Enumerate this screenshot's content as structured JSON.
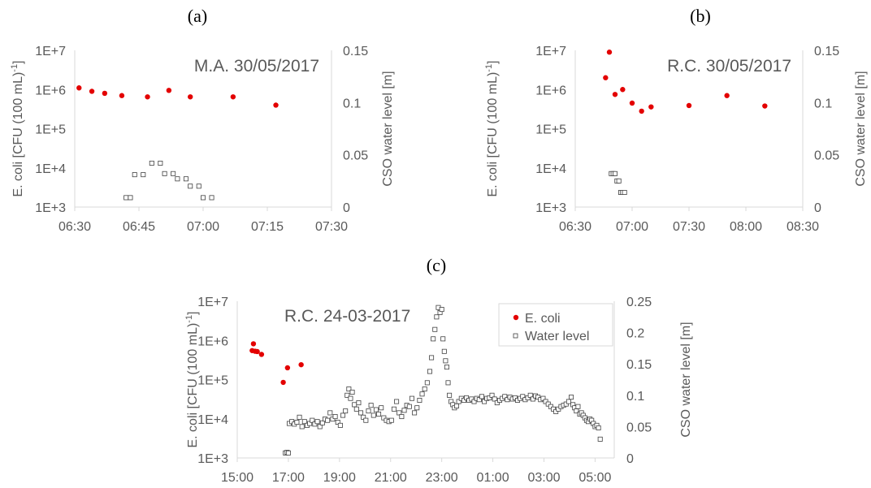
{
  "chart_data": [
    {
      "panel_label": "(a)",
      "type": "scatter",
      "annotation": "M.A. 30/05/2017",
      "ylabel": "E. coli [CFU (100 mL)",
      "ylabel_sup": "-1",
      "ylabel_close": "]",
      "y2label": "CSO water level [m]",
      "x_ticks": [
        "06:30",
        "06:45",
        "07:00",
        "07:15",
        "07:30"
      ],
      "xlim": [
        "06:30",
        "07:30"
      ],
      "y_ticks": [
        "1E+3",
        "1E+4",
        "1E+5",
        "1E+6",
        "1E+7"
      ],
      "ylim": [
        1000,
        10000000
      ],
      "y_scale": "log",
      "y2_ticks": [
        "0",
        "0.05",
        "0.1",
        "0.15"
      ],
      "y2lim": [
        0,
        0.15
      ],
      "series": [
        {
          "axis": "left",
          "marker": "filled-circle",
          "color": "#e30000",
          "points": [
            [
              "06:31",
              1100000
            ],
            [
              "06:34",
              900000
            ],
            [
              "06:37",
              800000
            ],
            [
              "06:41",
              700000
            ],
            [
              "06:47",
              650000
            ],
            [
              "06:52",
              950000
            ],
            [
              "06:57",
              650000
            ],
            [
              "07:07",
              650000
            ],
            [
              "07:17",
              400000
            ]
          ]
        },
        {
          "axis": "right",
          "marker": "open-square",
          "color": "#404040",
          "points": [
            [
              "06:42",
              0.009
            ],
            [
              "06:43",
              0.009
            ],
            [
              "06:44",
              0.031
            ],
            [
              "06:46",
              0.031
            ],
            [
              "06:48",
              0.042
            ],
            [
              "06:50",
              0.042
            ],
            [
              "06:51",
              0.032
            ],
            [
              "06:53",
              0.032
            ],
            [
              "06:54",
              0.027
            ],
            [
              "06:56",
              0.027
            ],
            [
              "06:57",
              0.02
            ],
            [
              "06:59",
              0.02
            ],
            [
              "07:00",
              0.009
            ],
            [
              "07:02",
              0.009
            ]
          ]
        }
      ]
    },
    {
      "panel_label": "(b)",
      "type": "scatter",
      "annotation": "R.C. 30/05/2017",
      "ylabel": "E. coli [CFU (100 mL)",
      "ylabel_sup": "-1",
      "ylabel_close": "]",
      "y2label": "CSO water level [m]",
      "x_ticks": [
        "06:30",
        "07:00",
        "07:30",
        "08:00",
        "08:30"
      ],
      "xlim": [
        "06:30",
        "08:30"
      ],
      "y_ticks": [
        "1E+3",
        "1E+4",
        "1E+5",
        "1E+6",
        "1E+7"
      ],
      "ylim": [
        1000,
        10000000
      ],
      "y_scale": "log",
      "y2_ticks": [
        "0",
        "0.05",
        "0.1",
        "0.15"
      ],
      "y2lim": [
        0,
        0.15
      ],
      "series": [
        {
          "axis": "left",
          "marker": "filled-circle",
          "color": "#e30000",
          "points": [
            [
              "06:46",
              2000000
            ],
            [
              "06:48",
              9000000
            ],
            [
              "06:51",
              750000
            ],
            [
              "06:55",
              1000000
            ],
            [
              "07:00",
              450000
            ],
            [
              "07:05",
              280000
            ],
            [
              "07:10",
              360000
            ],
            [
              "07:30",
              390000
            ],
            [
              "07:50",
              700000
            ],
            [
              "08:10",
              380000
            ]
          ]
        },
        {
          "axis": "right",
          "marker": "open-square",
          "color": "#404040",
          "points": [
            [
              "06:49",
              0.032
            ],
            [
              "06:50",
              0.032
            ],
            [
              "06:51",
              0.032
            ],
            [
              "06:52",
              0.025
            ],
            [
              "06:53",
              0.025
            ],
            [
              "06:54",
              0.014
            ],
            [
              "06:55",
              0.014
            ],
            [
              "06:56",
              0.014
            ]
          ]
        }
      ]
    },
    {
      "panel_label": "(c)",
      "type": "scatter",
      "annotation": "R.C. 24-03-2017",
      "ylabel": "E. coli [CFU (100 mL)",
      "ylabel_sup": "-1",
      "ylabel_close": "]",
      "y2label": "CSO water level [m]",
      "x_ticks": [
        "15:00",
        "17:00",
        "19:00",
        "21:00",
        "23:00",
        "01:00",
        "03:00",
        "05:00"
      ],
      "xlim": [
        "15:00",
        "05:45"
      ],
      "y_ticks": [
        "1E+3",
        "1E+4",
        "1E+5",
        "1E+6",
        "1E+7"
      ],
      "ylim": [
        1000,
        10000000
      ],
      "y_scale": "log",
      "y2_ticks": [
        "0",
        "0.05",
        "0.1",
        "0.15",
        "0.2",
        "0.25"
      ],
      "y2lim": [
        0,
        0.25
      ],
      "legend": {
        "placement": "top-right",
        "entries": [
          "E. coli",
          "Water level"
        ]
      },
      "series": [
        {
          "name": "E. coli",
          "axis": "left",
          "marker": "filled-circle",
          "color": "#e30000",
          "points": [
            [
              "15:35",
              550000
            ],
            [
              "15:38",
              820000
            ],
            [
              "15:42",
              530000
            ],
            [
              "15:47",
              520000
            ],
            [
              "15:57",
              440000
            ],
            [
              "16:48",
              85000
            ],
            [
              "16:58",
              200000
            ],
            [
              "17:30",
              240000
            ]
          ]
        },
        {
          "name": "Water level",
          "axis": "right",
          "marker": "open-square",
          "color": "#404040",
          "points": [
            [
              "16:53",
              0.008
            ],
            [
              "16:57",
              0.009
            ],
            [
              "17:00",
              0.008
            ],
            [
              "17:02",
              0.055
            ],
            [
              "17:08",
              0.058
            ],
            [
              "17:14",
              0.054
            ],
            [
              "17:20",
              0.057
            ],
            [
              "17:26",
              0.065
            ],
            [
              "17:32",
              0.05
            ],
            [
              "17:38",
              0.058
            ],
            [
              "17:44",
              0.052
            ],
            [
              "17:50",
              0.055
            ],
            [
              "17:56",
              0.06
            ],
            [
              "18:02",
              0.054
            ],
            [
              "18:08",
              0.058
            ],
            [
              "18:14",
              0.05
            ],
            [
              "18:20",
              0.056
            ],
            [
              "18:26",
              0.062
            ],
            [
              "18:32",
              0.06
            ],
            [
              "18:38",
              0.072
            ],
            [
              "18:44",
              0.062
            ],
            [
              "18:50",
              0.066
            ],
            [
              "18:56",
              0.057
            ],
            [
              "19:02",
              0.052
            ],
            [
              "19:08",
              0.068
            ],
            [
              "19:14",
              0.075
            ],
            [
              "19:18",
              0.1
            ],
            [
              "19:22",
              0.11
            ],
            [
              "19:26",
              0.095
            ],
            [
              "19:30",
              0.105
            ],
            [
              "19:35",
              0.085
            ],
            [
              "19:40",
              0.078
            ],
            [
              "19:45",
              0.088
            ],
            [
              "19:50",
              0.072
            ],
            [
              "19:56",
              0.065
            ],
            [
              "20:02",
              0.06
            ],
            [
              "20:08",
              0.075
            ],
            [
              "20:14",
              0.084
            ],
            [
              "20:20",
              0.068
            ],
            [
              "20:26",
              0.077
            ],
            [
              "20:32",
              0.07
            ],
            [
              "20:38",
              0.08
            ],
            [
              "20:44",
              0.064
            ],
            [
              "20:50",
              0.06
            ],
            [
              "20:56",
              0.058
            ],
            [
              "21:02",
              0.06
            ],
            [
              "21:08",
              0.078
            ],
            [
              "21:14",
              0.09
            ],
            [
              "21:20",
              0.072
            ],
            [
              "21:26",
              0.066
            ],
            [
              "21:32",
              0.076
            ],
            [
              "21:38",
              0.084
            ],
            [
              "21:44",
              0.082
            ],
            [
              "21:50",
              0.095
            ],
            [
              "21:56",
              0.072
            ],
            [
              "22:02",
              0.08
            ],
            [
              "22:08",
              0.092
            ],
            [
              "22:14",
              0.102
            ],
            [
              "22:20",
              0.11
            ],
            [
              "22:26",
              0.12
            ],
            [
              "22:32",
              0.138
            ],
            [
              "22:36",
              0.16
            ],
            [
              "22:40",
              0.19
            ],
            [
              "22:44",
              0.205
            ],
            [
              "22:48",
              0.225
            ],
            [
              "22:52",
              0.24
            ],
            [
              "22:56",
              0.232
            ],
            [
              "23:00",
              0.237
            ],
            [
              "23:03",
              0.19
            ],
            [
              "23:06",
              0.17
            ],
            [
              "23:09",
              0.155
            ],
            [
              "23:12",
              0.145
            ],
            [
              "23:15",
              0.12
            ],
            [
              "23:18",
              0.1
            ],
            [
              "23:22",
              0.09
            ],
            [
              "23:26",
              0.085
            ],
            [
              "23:30",
              0.08
            ],
            [
              "23:35",
              0.083
            ],
            [
              "23:40",
              0.09
            ],
            [
              "23:46",
              0.095
            ],
            [
              "23:52",
              0.092
            ],
            [
              "23:58",
              0.096
            ],
            [
              "00:04",
              0.092
            ],
            [
              "00:10",
              0.094
            ],
            [
              "00:16",
              0.09
            ],
            [
              "00:22",
              0.095
            ],
            [
              "00:28",
              0.093
            ],
            [
              "00:34",
              0.098
            ],
            [
              "00:40",
              0.09
            ],
            [
              "00:46",
              0.095
            ],
            [
              "00:52",
              0.096
            ],
            [
              "00:58",
              0.1
            ],
            [
              "01:04",
              0.094
            ],
            [
              "01:10",
              0.088
            ],
            [
              "01:16",
              0.092
            ],
            [
              "01:22",
              0.095
            ],
            [
              "01:28",
              0.098
            ],
            [
              "01:34",
              0.093
            ],
            [
              "01:40",
              0.097
            ],
            [
              "01:46",
              0.094
            ],
            [
              "01:52",
              0.096
            ],
            [
              "01:58",
              0.092
            ],
            [
              "02:04",
              0.095
            ],
            [
              "02:10",
              0.098
            ],
            [
              "02:16",
              0.093
            ],
            [
              "02:22",
              0.096
            ],
            [
              "02:28",
              0.1
            ],
            [
              "02:34",
              0.094
            ],
            [
              "02:40",
              0.099
            ],
            [
              "02:46",
              0.097
            ],
            [
              "02:52",
              0.093
            ],
            [
              "02:58",
              0.095
            ],
            [
              "03:04",
              0.09
            ],
            [
              "03:10",
              0.086
            ],
            [
              "03:16",
              0.082
            ],
            [
              "03:22",
              0.078
            ],
            [
              "03:28",
              0.074
            ],
            [
              "03:34",
              0.078
            ],
            [
              "03:40",
              0.082
            ],
            [
              "03:46",
              0.084
            ],
            [
              "03:52",
              0.086
            ],
            [
              "03:58",
              0.09
            ],
            [
              "04:04",
              0.097
            ],
            [
              "04:08",
              0.085
            ],
            [
              "04:12",
              0.08
            ],
            [
              "04:16",
              0.075
            ],
            [
              "04:20",
              0.082
            ],
            [
              "04:24",
              0.07
            ],
            [
              "04:28",
              0.072
            ],
            [
              "04:32",
              0.068
            ],
            [
              "04:36",
              0.064
            ],
            [
              "04:40",
              0.06
            ],
            [
              "04:44",
              0.058
            ],
            [
              "04:48",
              0.062
            ],
            [
              "04:52",
              0.06
            ],
            [
              "04:56",
              0.055
            ],
            [
              "05:00",
              0.05
            ],
            [
              "05:04",
              0.052
            ],
            [
              "05:08",
              0.048
            ],
            [
              "05:12",
              0.03
            ]
          ]
        }
      ]
    }
  ]
}
